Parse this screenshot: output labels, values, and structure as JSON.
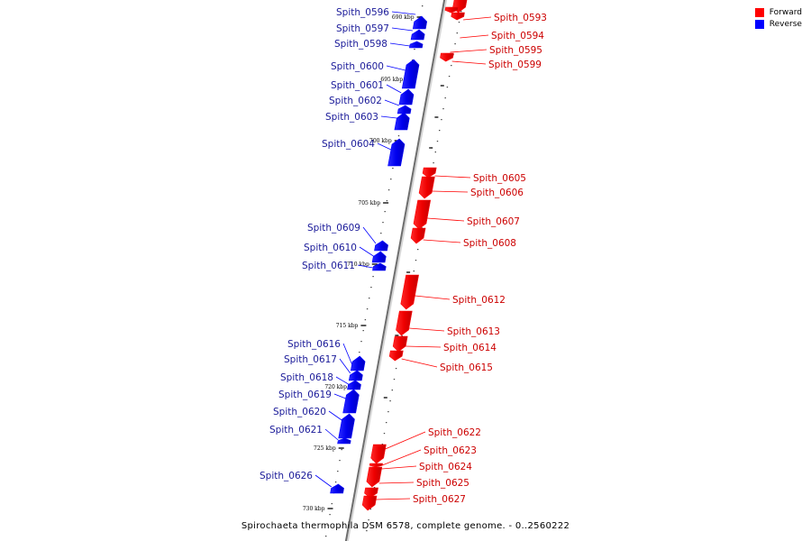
{
  "caption": "Spirochaeta thermophila DSM 6578, complete genome. - 0..2560222",
  "legend": {
    "items": [
      {
        "label": "Forward",
        "color": "#ff0000"
      },
      {
        "label": "Reverse",
        "color": "#0000ff"
      }
    ]
  },
  "colors": {
    "forward": "#ff0000",
    "reverse": "#0000ff",
    "forward_label": "#cc0000",
    "reverse_label": "#1a1a99"
  },
  "kbp_ticks": [
    "690 kbp",
    "695 kbp",
    "700 kbp",
    "705 kbp",
    "710 kbp",
    "715 kbp",
    "720 kbp",
    "725 kbp",
    "730 kbp"
  ],
  "genes": [
    {
      "name": "Spith_0593",
      "strand": "forward"
    },
    {
      "name": "Spith_0594",
      "strand": "forward"
    },
    {
      "name": "Spith_0595",
      "strand": "forward"
    },
    {
      "name": "Spith_0596",
      "strand": "reverse"
    },
    {
      "name": "Spith_0597",
      "strand": "reverse"
    },
    {
      "name": "Spith_0598",
      "strand": "reverse"
    },
    {
      "name": "Spith_0599",
      "strand": "forward"
    },
    {
      "name": "Spith_0600",
      "strand": "reverse"
    },
    {
      "name": "Spith_0601",
      "strand": "reverse"
    },
    {
      "name": "Spith_0602",
      "strand": "reverse"
    },
    {
      "name": "Spith_0603",
      "strand": "reverse"
    },
    {
      "name": "Spith_0604",
      "strand": "reverse"
    },
    {
      "name": "Spith_0605",
      "strand": "forward"
    },
    {
      "name": "Spith_0606",
      "strand": "forward"
    },
    {
      "name": "Spith_0607",
      "strand": "forward"
    },
    {
      "name": "Spith_0608",
      "strand": "forward"
    },
    {
      "name": "Spith_0609",
      "strand": "reverse"
    },
    {
      "name": "Spith_0610",
      "strand": "reverse"
    },
    {
      "name": "Spith_0611",
      "strand": "reverse"
    },
    {
      "name": "Spith_0612",
      "strand": "forward"
    },
    {
      "name": "Spith_0613",
      "strand": "forward"
    },
    {
      "name": "Spith_0614",
      "strand": "forward"
    },
    {
      "name": "Spith_0615",
      "strand": "forward"
    },
    {
      "name": "Spith_0616",
      "strand": "reverse"
    },
    {
      "name": "Spith_0617",
      "strand": "reverse"
    },
    {
      "name": "Spith_0618",
      "strand": "reverse"
    },
    {
      "name": "Spith_0619",
      "strand": "reverse"
    },
    {
      "name": "Spith_0620",
      "strand": "reverse"
    },
    {
      "name": "Spith_0621",
      "strand": "reverse"
    },
    {
      "name": "Spith_0622",
      "strand": "forward"
    },
    {
      "name": "Spith_0623",
      "strand": "forward"
    },
    {
      "name": "Spith_0624",
      "strand": "forward"
    },
    {
      "name": "Spith_0625",
      "strand": "forward"
    },
    {
      "name": "Spith_0626",
      "strand": "reverse"
    },
    {
      "name": "Spith_0627",
      "strand": "forward"
    }
  ]
}
